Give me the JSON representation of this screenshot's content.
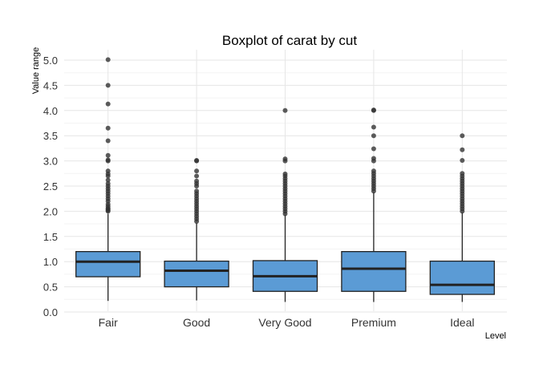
{
  "chart_data": {
    "type": "boxplot",
    "title": "Boxplot of carat by cut",
    "xlabel": "Level",
    "ylabel": "Value range",
    "ylim": [
      0,
      5.2
    ],
    "yticks": [
      "0.0",
      "0.5",
      "1.0",
      "1.5",
      "2.0",
      "2.5",
      "3.0",
      "3.5",
      "4.0",
      "4.5",
      "5.0"
    ],
    "grid": true,
    "box_color": "#5b9bd5",
    "outlier_color": "#333333",
    "categories": [
      "Fair",
      "Good",
      "Very Good",
      "Premium",
      "Ideal"
    ],
    "boxes": [
      {
        "name": "Fair",
        "whisker_low": 0.22,
        "q1": 0.7,
        "median": 1.0,
        "q3": 1.2,
        "whisker_high": 1.95,
        "outliers": [
          2.0,
          2.02,
          2.04,
          2.06,
          2.1,
          2.14,
          2.2,
          2.25,
          2.3,
          2.35,
          2.4,
          2.45,
          2.5,
          2.55,
          2.62,
          2.7,
          2.74,
          2.8,
          3.0,
          3.02,
          3.11,
          3.4,
          3.65,
          4.13,
          4.5,
          5.01
        ]
      },
      {
        "name": "Good",
        "whisker_low": 0.23,
        "q1": 0.5,
        "median": 0.82,
        "q3": 1.01,
        "whisker_high": 1.77,
        "outliers": [
          1.8,
          1.85,
          1.9,
          1.95,
          2.0,
          2.05,
          2.1,
          2.15,
          2.2,
          2.25,
          2.3,
          2.35,
          2.4,
          2.5,
          2.55,
          2.6,
          2.7,
          2.8,
          3.0,
          3.01
        ]
      },
      {
        "name": "Very Good",
        "whisker_low": 0.2,
        "q1": 0.41,
        "median": 0.71,
        "q3": 1.02,
        "whisker_high": 1.93,
        "outliers": [
          1.95,
          2.0,
          2.05,
          2.1,
          2.15,
          2.2,
          2.25,
          2.3,
          2.35,
          2.4,
          2.45,
          2.5,
          2.55,
          2.6,
          2.65,
          2.7,
          2.74,
          3.0,
          3.04,
          4.0
        ]
      },
      {
        "name": "Premium",
        "whisker_low": 0.2,
        "q1": 0.41,
        "median": 0.86,
        "q3": 1.2,
        "whisker_high": 2.38,
        "outliers": [
          2.4,
          2.45,
          2.5,
          2.55,
          2.6,
          2.65,
          2.7,
          2.75,
          2.8,
          3.0,
          3.05,
          3.24,
          3.5,
          3.67,
          4.0,
          4.01
        ]
      },
      {
        "name": "Ideal",
        "whisker_low": 0.2,
        "q1": 0.35,
        "median": 0.54,
        "q3": 1.01,
        "whisker_high": 1.98,
        "outliers": [
          2.0,
          2.05,
          2.1,
          2.15,
          2.2,
          2.25,
          2.3,
          2.35,
          2.4,
          2.45,
          2.5,
          2.55,
          2.6,
          2.65,
          2.7,
          2.75,
          3.01,
          3.22,
          3.5
        ]
      }
    ]
  }
}
